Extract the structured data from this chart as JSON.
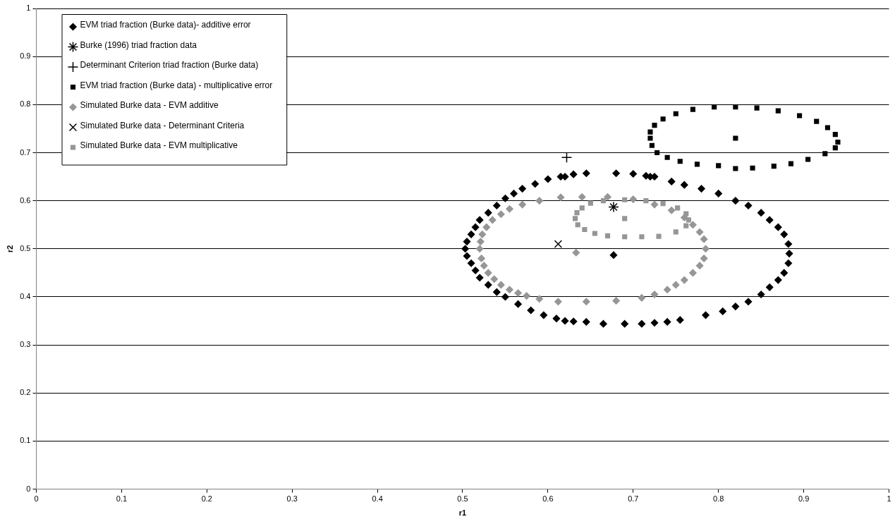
{
  "chart_data": {
    "type": "scatter",
    "xlabel": "r1",
    "ylabel": "r2",
    "xlim": [
      0,
      1
    ],
    "ylim": [
      0,
      1
    ],
    "xticks": [
      0,
      0.1,
      0.2,
      0.3,
      0.4,
      0.5,
      0.6,
      0.7,
      0.8,
      0.9,
      1
    ],
    "yticks": [
      0,
      0.1,
      0.2,
      0.3,
      0.4,
      0.5,
      0.6,
      0.7,
      0.8,
      0.9,
      1
    ],
    "grid": "y",
    "legend": "top left",
    "series": [
      {
        "name": "EVM triad fraction (Burke data)- additive error",
        "color": "#000000",
        "marker": "diamond",
        "x": [
          0.645,
          0.68,
          0.7,
          0.715,
          0.72,
          0.725,
          0.63,
          0.615,
          0.62,
          0.6,
          0.585,
          0.57,
          0.56,
          0.55,
          0.54,
          0.53,
          0.52,
          0.515,
          0.51,
          0.505,
          0.503,
          0.505,
          0.51,
          0.515,
          0.52,
          0.53,
          0.54,
          0.55,
          0.565,
          0.58,
          0.595,
          0.61,
          0.62,
          0.63,
          0.645,
          0.665,
          0.69,
          0.71,
          0.725,
          0.74,
          0.755,
          0.785,
          0.805,
          0.82,
          0.835,
          0.85,
          0.86,
          0.87,
          0.877,
          0.882,
          0.883,
          0.882,
          0.877,
          0.87,
          0.86,
          0.85,
          0.835,
          0.82,
          0.8,
          0.78,
          0.76,
          0.745,
          0.677
        ],
        "values": [
          0.657,
          0.657,
          0.656,
          0.652,
          0.65,
          0.65,
          0.655,
          0.65,
          0.65,
          0.645,
          0.635,
          0.625,
          0.615,
          0.605,
          0.59,
          0.575,
          0.56,
          0.545,
          0.53,
          0.515,
          0.5,
          0.485,
          0.47,
          0.455,
          0.44,
          0.425,
          0.41,
          0.4,
          0.385,
          0.372,
          0.362,
          0.355,
          0.35,
          0.349,
          0.348,
          0.344,
          0.344,
          0.344,
          0.346,
          0.348,
          0.352,
          0.362,
          0.37,
          0.38,
          0.39,
          0.405,
          0.42,
          0.435,
          0.45,
          0.47,
          0.49,
          0.51,
          0.53,
          0.545,
          0.56,
          0.575,
          0.59,
          0.6,
          0.615,
          0.625,
          0.633,
          0.64,
          0.487
        ]
      },
      {
        "name": "Burke (1996) triad fraction data",
        "color": "#000000",
        "x": [
          0.677
        ],
        "values": [
          0.587
        ]
      },
      {
        "name": "Determinant Criterion triad fraction (Burke data)",
        "color": "#000000",
        "marker": "cross",
        "x": [
          0.622
        ],
        "values": [
          0.69
        ]
      },
      {
        "name": "EVM triad fraction (Burke data) - multiplicative error",
        "color": "#000000",
        "marker": "square",
        "x": [
          0.72,
          0.722,
          0.728,
          0.74,
          0.755,
          0.775,
          0.8,
          0.82,
          0.84,
          0.865,
          0.885,
          0.905,
          0.925,
          0.937,
          0.94,
          0.937,
          0.928,
          0.915,
          0.895,
          0.87,
          0.845,
          0.82,
          0.795,
          0.77,
          0.75,
          0.735,
          0.725,
          0.72,
          0.82
        ],
        "values": [
          0.73,
          0.715,
          0.7,
          0.69,
          0.682,
          0.676,
          0.673,
          0.667,
          0.668,
          0.672,
          0.677,
          0.686,
          0.698,
          0.71,
          0.722,
          0.738,
          0.752,
          0.765,
          0.777,
          0.787,
          0.793,
          0.795,
          0.795,
          0.79,
          0.781,
          0.77,
          0.757,
          0.743,
          0.73
        ]
      },
      {
        "name": "Simulated Burke data - EVM additive",
        "color": "#969696",
        "marker": "diamond",
        "x": [
          0.52,
          0.522,
          0.525,
          0.53,
          0.537,
          0.545,
          0.555,
          0.565,
          0.575,
          0.59,
          0.612,
          0.645,
          0.68,
          0.71,
          0.725,
          0.74,
          0.75,
          0.76,
          0.77,
          0.778,
          0.783,
          0.785,
          0.783,
          0.778,
          0.77,
          0.76,
          0.745,
          0.725,
          0.7,
          0.67,
          0.64,
          0.615,
          0.59,
          0.57,
          0.555,
          0.545,
          0.535,
          0.528,
          0.523,
          0.521,
          0.633
        ],
        "values": [
          0.5,
          0.48,
          0.465,
          0.45,
          0.437,
          0.425,
          0.415,
          0.408,
          0.402,
          0.396,
          0.39,
          0.39,
          0.392,
          0.398,
          0.405,
          0.415,
          0.425,
          0.435,
          0.45,
          0.465,
          0.48,
          0.5,
          0.52,
          0.535,
          0.55,
          0.565,
          0.58,
          0.592,
          0.603,
          0.608,
          0.608,
          0.607,
          0.6,
          0.592,
          0.583,
          0.572,
          0.56,
          0.545,
          0.53,
          0.515,
          0.492
        ]
      },
      {
        "name": "Simulated Burke data - Determinant Criteria",
        "color": "#000000",
        "marker": "x",
        "x": [
          0.612
        ],
        "values": [
          0.51
        ]
      },
      {
        "name": "Simulated Burke data - EVM multiplicative",
        "color": "#969696",
        "marker": "square",
        "x": [
          0.632,
          0.635,
          0.643,
          0.655,
          0.67,
          0.69,
          0.71,
          0.73,
          0.75,
          0.762,
          0.765,
          0.762,
          0.752,
          0.735,
          0.715,
          0.69,
          0.665,
          0.65,
          0.64,
          0.634,
          0.69
        ],
        "values": [
          0.563,
          0.55,
          0.54,
          0.532,
          0.527,
          0.525,
          0.525,
          0.526,
          0.535,
          0.548,
          0.56,
          0.573,
          0.585,
          0.594,
          0.6,
          0.602,
          0.6,
          0.595,
          0.585,
          0.575,
          0.563
        ]
      }
    ]
  }
}
